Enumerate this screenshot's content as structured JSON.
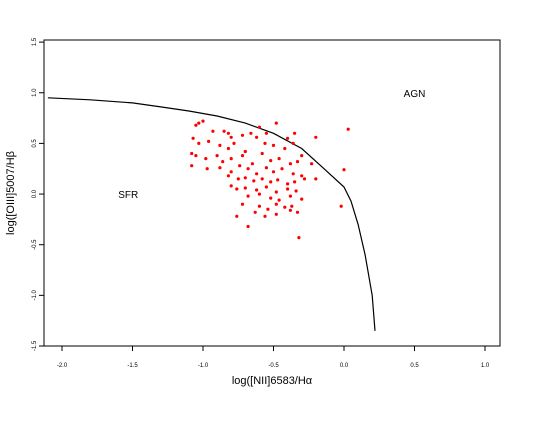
{
  "chart_data": {
    "type": "scatter",
    "xlabel": "log([NII]6583/Hα",
    "ylabel": "log([OIII]5007/Hβ",
    "xlim": [
      -2.1,
      1.0
    ],
    "ylim": [
      -1.5,
      1.5
    ],
    "x_ticks": [
      -2.0,
      -1.5,
      -1.0,
      -0.5,
      0.0,
      0.5,
      1.0
    ],
    "x_tick_labels": [
      "-2.0",
      "-1.5",
      "-1.0",
      "-0.5",
      "0.0",
      "0.5",
      "1.0"
    ],
    "y_ticks": [
      -1.5,
      -1.0,
      -0.5,
      0.0,
      0.5,
      1.0,
      1.5
    ],
    "y_tick_labels": [
      "-1.5",
      "-1.0",
      "-0.5",
      "0.0",
      "0.5",
      "1.0",
      "1.5"
    ],
    "grid": false,
    "legend": "none",
    "annotations": [
      {
        "text": "AGN",
        "x": 0.5,
        "y": 1.0
      },
      {
        "text": "SFR",
        "x": -1.53,
        "y": 0.0
      }
    ],
    "line": {
      "color": "#000000",
      "x": [
        -2.1,
        -1.8,
        -1.5,
        -1.3,
        -1.1,
        -0.9,
        -0.7,
        -0.5,
        -0.3,
        -0.15,
        0.0,
        0.05,
        0.1,
        0.15,
        0.2,
        0.22
      ],
      "y": [
        0.95,
        0.93,
        0.9,
        0.86,
        0.82,
        0.77,
        0.7,
        0.6,
        0.45,
        0.26,
        0.07,
        -0.07,
        -0.3,
        -0.6,
        -1.0,
        -1.35
      ]
    },
    "points": {
      "color": "#ff0000",
      "x": [
        -1.03,
        -1.05,
        -1.0,
        -0.93,
        -0.85,
        -0.82,
        -0.8,
        -0.72,
        -0.66,
        -0.6,
        -0.55,
        -0.48,
        -0.4,
        -0.35,
        -0.2,
        0.03,
        -1.07,
        -1.03,
        -0.96,
        -0.88,
        -0.82,
        -0.78,
        -0.7,
        -0.62,
        -0.56,
        -0.5,
        -0.42,
        -0.36,
        -0.3,
        -1.08,
        -1.05,
        -0.98,
        -0.9,
        -0.86,
        -0.8,
        -0.72,
        -0.65,
        -0.58,
        -0.52,
        -0.46,
        -0.38,
        -0.33,
        -0.23,
        -1.08,
        -0.97,
        -0.88,
        -0.8,
        -0.74,
        -0.68,
        -0.62,
        -0.55,
        -0.5,
        -0.44,
        -0.36,
        -0.3,
        -0.82,
        -0.75,
        -0.7,
        -0.64,
        -0.58,
        -0.52,
        -0.47,
        -0.4,
        -0.35,
        -0.28,
        -0.2,
        0.0,
        -0.8,
        -0.76,
        -0.7,
        -0.62,
        -0.55,
        -0.48,
        -0.4,
        -0.34,
        -0.68,
        -0.6,
        -0.52,
        -0.46,
        -0.38,
        -0.3,
        -0.72,
        -0.6,
        -0.54,
        -0.48,
        -0.42,
        -0.37,
        -0.02,
        -0.63,
        -0.56,
        -0.48,
        -0.38,
        -0.33,
        -0.76,
        -0.68,
        -0.32
      ],
      "y": [
        0.7,
        0.68,
        0.72,
        0.62,
        0.62,
        0.6,
        0.56,
        0.58,
        0.6,
        0.66,
        0.6,
        0.7,
        0.55,
        0.6,
        0.56,
        0.64,
        0.55,
        0.5,
        0.52,
        0.48,
        0.45,
        0.5,
        0.42,
        0.56,
        0.5,
        0.48,
        0.45,
        0.5,
        0.38,
        0.4,
        0.38,
        0.35,
        0.38,
        0.32,
        0.35,
        0.38,
        0.3,
        0.4,
        0.33,
        0.35,
        0.3,
        0.32,
        0.3,
        0.28,
        0.25,
        0.26,
        0.22,
        0.28,
        0.25,
        0.2,
        0.26,
        0.22,
        0.25,
        0.2,
        0.18,
        0.18,
        0.15,
        0.16,
        0.13,
        0.15,
        0.12,
        0.14,
        0.1,
        0.12,
        0.15,
        0.15,
        0.24,
        0.08,
        0.05,
        0.06,
        0.04,
        0.07,
        0.02,
        0.05,
        0.03,
        -0.02,
        0.0,
        -0.04,
        -0.06,
        -0.02,
        -0.05,
        -0.1,
        -0.12,
        -0.15,
        -0.1,
        -0.13,
        -0.12,
        -0.12,
        -0.18,
        -0.22,
        -0.2,
        -0.16,
        -0.18,
        -0.22,
        -0.32,
        -0.43
      ]
    }
  }
}
